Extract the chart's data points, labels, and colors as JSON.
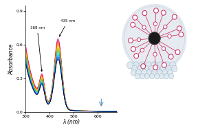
{
  "xlim": [
    300,
    680
  ],
  "ylim": [
    0.0,
    0.95
  ],
  "xlabel": "λ (nm)",
  "ylabel": "Absorbance",
  "xticks": [
    300,
    400,
    500,
    600
  ],
  "yticks": [
    0.0,
    0.3,
    0.6,
    0.9
  ],
  "ytick_labels": [
    "0,0",
    "0,3",
    "0,6",
    "0,9"
  ],
  "annotation1_label": "368 nm",
  "annotation2_label": "435 nm",
  "n_curves": 12,
  "colors": [
    "#000000",
    "#0000dd",
    "#0066ff",
    "#00aaff",
    "#00ccbb",
    "#22bb00",
    "#99cc00",
    "#ffcc00",
    "#ff8800",
    "#ff3300",
    "#ee0000",
    "#cc0099"
  ],
  "bg_color": "#ffffff"
}
